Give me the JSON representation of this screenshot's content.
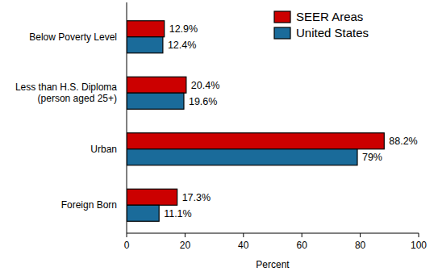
{
  "chart_data": {
    "type": "bar",
    "orientation": "horizontal",
    "categories": [
      "Below Poverty Level",
      "Less than H.S. Diploma\n(person aged 25+)",
      "Urban",
      "Foreign Born"
    ],
    "series": [
      {
        "name": "SEER Areas",
        "color": "#cc0000",
        "values": [
          12.9,
          20.4,
          88.2,
          17.3
        ],
        "value_labels": [
          "12.9%",
          "20.4%",
          "88.2%",
          "17.3%"
        ]
      },
      {
        "name": "United States",
        "color": "#1a6b9a",
        "values": [
          12.4,
          19.6,
          79,
          11.1
        ],
        "value_labels": [
          "12.4%",
          "19.6%",
          "79%",
          "11.1%"
        ]
      }
    ],
    "x_label": "Percent",
    "xlim": [
      0,
      100
    ],
    "xticks": [
      0,
      20,
      40,
      60,
      80,
      100
    ],
    "legend": "top-right",
    "data_labels": true,
    "grid": false
  }
}
